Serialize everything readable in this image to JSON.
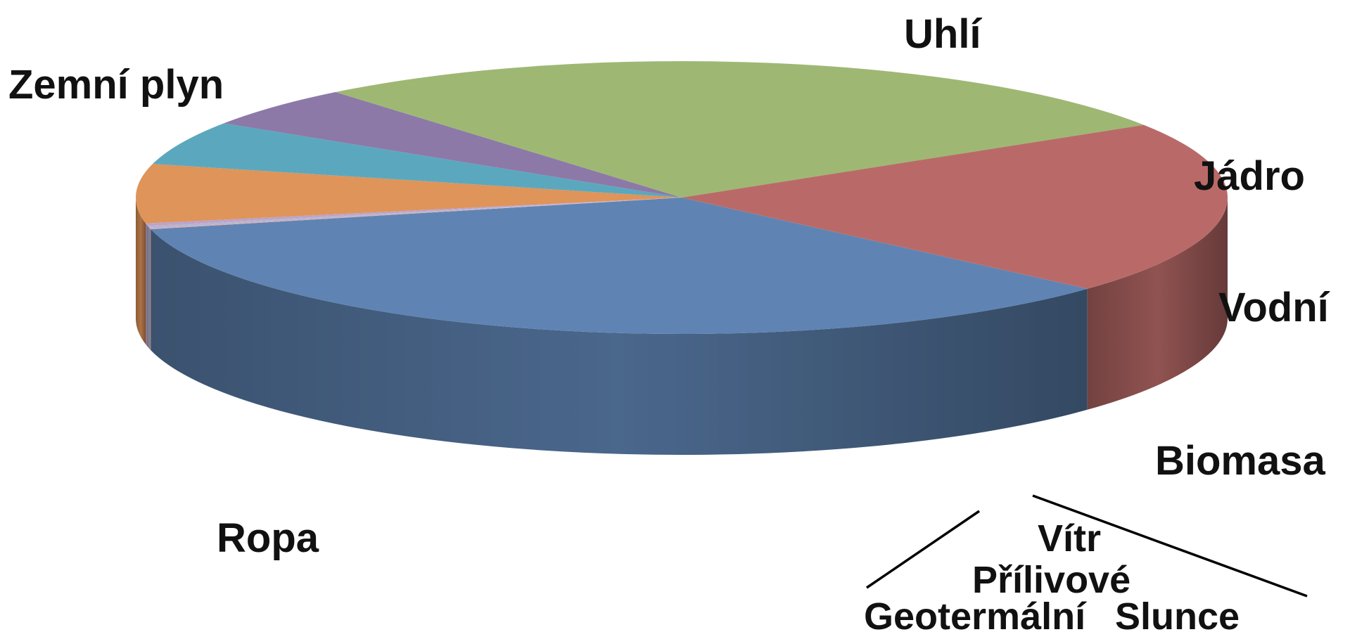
{
  "chart_data": {
    "type": "pie",
    "style": "3d",
    "title": "",
    "slices": [
      {
        "label": "Ropa",
        "value": 34.6,
        "color": "#5F84B3"
      },
      {
        "label": "Uhlí",
        "value": 27.0,
        "color": "#9EB873"
      },
      {
        "label": "Zemní plyn",
        "value": 20.6,
        "color": "#B96A68"
      },
      {
        "label": "Jádro",
        "value": 4.9,
        "color": "#8C79A8"
      },
      {
        "label": "Vodní",
        "value": 5.2,
        "color": "#5BA8BE"
      },
      {
        "label": "Biomasa",
        "value": 7.0,
        "color": "#DF9459"
      },
      {
        "label": "Vítr",
        "value": 0.3,
        "color": "#B9A3CE"
      },
      {
        "label": "Přílivové",
        "value": 0.1,
        "color": "#CDA2B4"
      },
      {
        "label": "Geotermální",
        "value": 0.2,
        "color": "#A9B9D8"
      },
      {
        "label": "Slunce",
        "value": 0.1,
        "color": "#E3A3A8"
      }
    ]
  }
}
